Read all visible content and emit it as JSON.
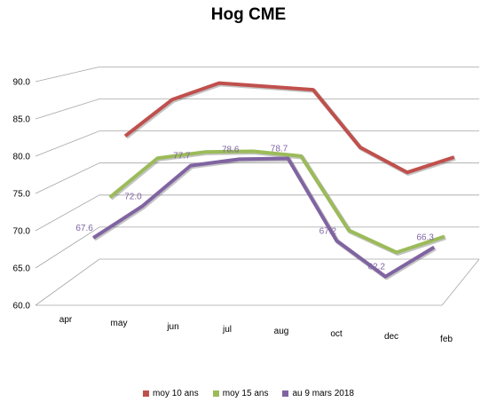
{
  "chart_data": {
    "type": "line",
    "title": "Hog CME",
    "categories": [
      "apr",
      "may",
      "jun",
      "jul",
      "aug",
      "oct",
      "dec",
      "feb"
    ],
    "ylim": [
      60,
      90
    ],
    "yticks": [
      "60.0",
      "65.0",
      "70.0",
      "75.0",
      "80.0",
      "85.0",
      "90.0"
    ],
    "grid": true,
    "legend": "bottom",
    "series": [
      {
        "name": "moy 10 ans",
        "color": "#c0504d",
        "values": [
          80.0,
          85.5,
          88.0,
          87.5,
          87.0,
          78.3,
          74.5,
          76.8
        ]
      },
      {
        "name": "moy 15 ans",
        "color": "#9bbb59",
        "values": [
          72.0,
          77.7,
          78.6,
          78.7,
          78.0,
          67.2,
          64.0,
          66.3
        ]
      },
      {
        "name": "au 9 mars 2018",
        "color": "#8064a2",
        "values": [
          67.6,
          72.0,
          77.7,
          78.6,
          78.7,
          67.2,
          62.2,
          66.3
        ],
        "labels": [
          "67.6",
          "72.0",
          "77.7",
          "78.6",
          "78.7",
          "67.2",
          "62.2",
          "66.3"
        ]
      }
    ]
  }
}
